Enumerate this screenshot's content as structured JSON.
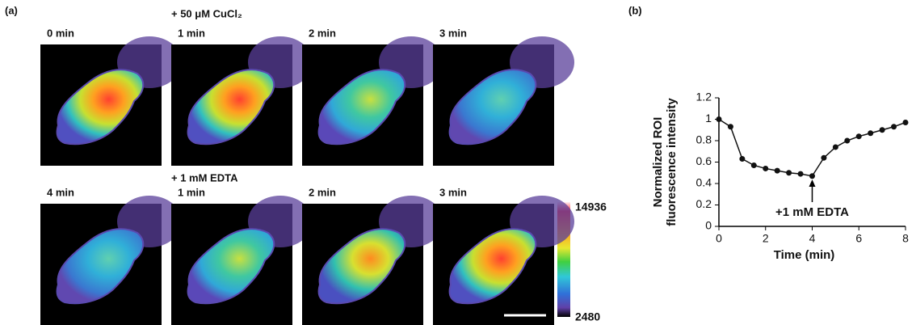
{
  "panel_a": {
    "label": "(a)",
    "treatments": [
      "+ 50 μM CuCl₂",
      "+ 1 mM EDTA"
    ],
    "frames": [
      "0 min",
      "1 min",
      "2 min",
      "3 min",
      "4 min",
      "1 min",
      "2 min",
      "3 min"
    ],
    "colorbar": {
      "max": "14936",
      "min": "2480"
    }
  },
  "chart_data": {
    "type": "line",
    "label": "(b)",
    "xlabel": "Time (min)",
    "ylabel": [
      "Normalized ROI",
      "fluorescence intensity"
    ],
    "x": [
      0,
      0.5,
      1,
      1.5,
      2,
      2.5,
      3,
      3.5,
      4,
      4.5,
      5,
      5.5,
      6,
      6.5,
      7,
      7.5,
      8
    ],
    "values": [
      1.0,
      0.93,
      0.63,
      0.57,
      0.54,
      0.52,
      0.5,
      0.49,
      0.47,
      0.64,
      0.74,
      0.8,
      0.84,
      0.87,
      0.9,
      0.93,
      0.97
    ],
    "color": "#111111",
    "xlim": [
      0,
      8
    ],
    "xticks": [
      0,
      2,
      4,
      6,
      8
    ],
    "ylim": [
      0,
      1.2
    ],
    "yticks": [
      0,
      0.2,
      0.4,
      0.6,
      0.8,
      1,
      1.2
    ],
    "annotations": [
      {
        "text": "+1 mM EDTA",
        "x": 4
      }
    ]
  }
}
